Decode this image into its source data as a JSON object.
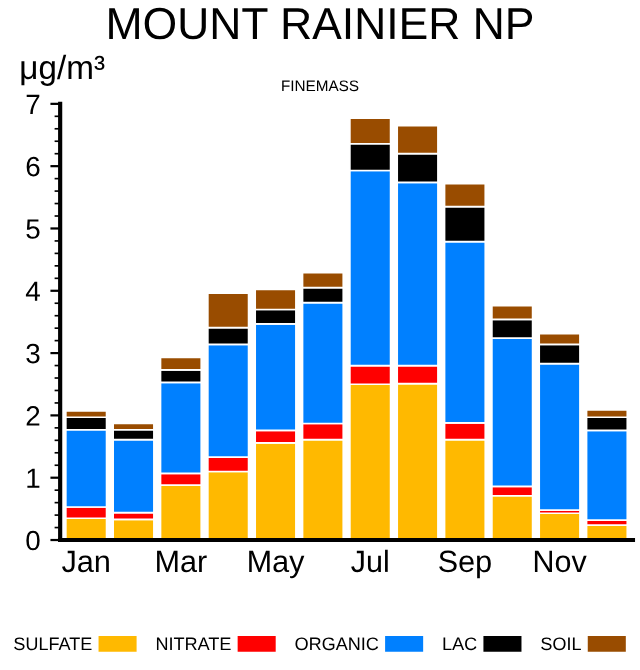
{
  "chart_data": {
    "type": "bar",
    "stacked": true,
    "title": "MOUNT RAINIER NP",
    "subtitle": "FINEMASS",
    "ylabel": "μg/m³",
    "categories": [
      "Jan",
      null,
      "Mar",
      null,
      "May",
      null,
      "Jul",
      null,
      "Sep",
      null,
      "Nov",
      null
    ],
    "series": [
      {
        "name": "SULFATE",
        "color": "#ffb900",
        "values": [
          0.35,
          0.33,
          0.88,
          1.1,
          1.56,
          1.61,
          2.5,
          2.51,
          1.61,
          0.71,
          0.43,
          0.24
        ]
      },
      {
        "name": "NITRATE",
        "color": "#ff0000",
        "values": [
          0.18,
          0.11,
          0.19,
          0.23,
          0.2,
          0.26,
          0.3,
          0.29,
          0.27,
          0.15,
          0.05,
          0.08
        ]
      },
      {
        "name": "ORGANIC",
        "color": "#0080ff",
        "values": [
          1.24,
          1.17,
          1.46,
          1.81,
          1.71,
          1.94,
          3.13,
          2.94,
          2.91,
          2.38,
          2.35,
          1.44
        ]
      },
      {
        "name": "LAC",
        "color": "#000000",
        "values": [
          0.2,
          0.16,
          0.2,
          0.27,
          0.23,
          0.24,
          0.43,
          0.46,
          0.56,
          0.3,
          0.31,
          0.21
        ]
      },
      {
        "name": "SOIL",
        "color": "#994c00",
        "values": [
          0.1,
          0.1,
          0.2,
          0.55,
          0.32,
          0.24,
          0.41,
          0.45,
          0.37,
          0.22,
          0.17,
          0.12
        ]
      }
    ],
    "ylim": [
      0,
      7
    ],
    "yticks": [
      0,
      1,
      2,
      3,
      4,
      5,
      6,
      7
    ],
    "grid": false,
    "legend": "bottom"
  }
}
